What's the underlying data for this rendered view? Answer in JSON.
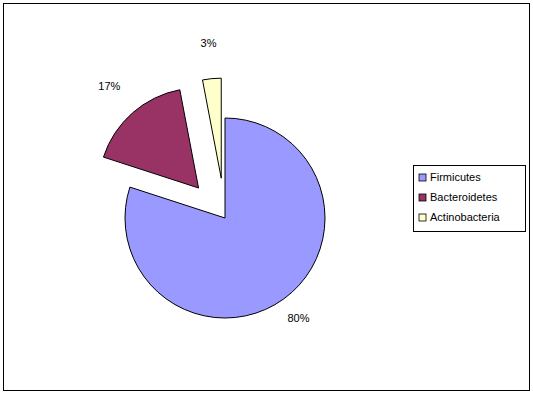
{
  "chart_data": {
    "type": "pie",
    "categories": [
      "Firmicutes",
      "Bacteroidetes",
      "Actinobacteria"
    ],
    "values": [
      80,
      17,
      3
    ],
    "value_labels": [
      "80%",
      "17%",
      "3%"
    ],
    "colors": [
      "#9999ff",
      "#993366",
      "#ffffcc"
    ],
    "data_labels": true,
    "legend": "right"
  }
}
